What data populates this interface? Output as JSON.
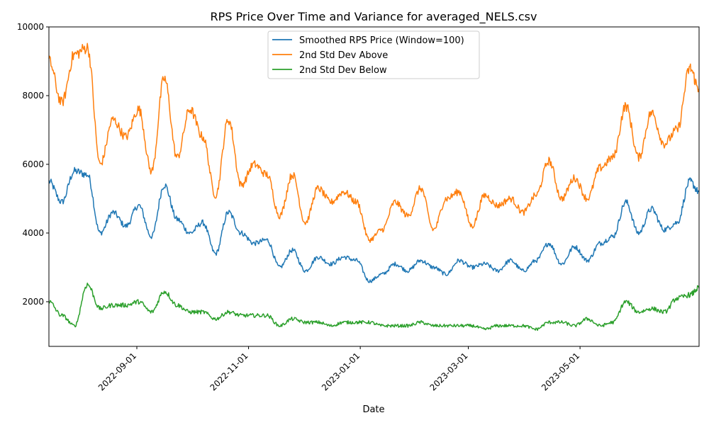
{
  "chart_data": {
    "type": "line",
    "title": "RPS Price Over Time and Variance for averaged_NELS.csv",
    "xlabel": "Date",
    "ylabel": "",
    "x_range": [
      "2022-07-15",
      "2023-07-05"
    ],
    "ylim": [
      700,
      10000
    ],
    "x_ticks": [
      "2022-09-01",
      "2022-11-01",
      "2023-01-01",
      "2023-03-01",
      "2023-05-01"
    ],
    "y_ticks": [
      2000,
      4000,
      6000,
      8000,
      10000
    ],
    "grid": false,
    "legend_position": "top-center",
    "x": [
      "2022-07-15",
      "2022-07-22",
      "2022-07-29",
      "2022-08-05",
      "2022-08-12",
      "2022-08-19",
      "2022-08-26",
      "2022-09-02",
      "2022-09-09",
      "2022-09-16",
      "2022-09-23",
      "2022-09-30",
      "2022-10-07",
      "2022-10-14",
      "2022-10-21",
      "2022-10-28",
      "2022-11-04",
      "2022-11-11",
      "2022-11-18",
      "2022-11-25",
      "2022-12-02",
      "2022-12-09",
      "2022-12-16",
      "2022-12-23",
      "2022-12-30",
      "2023-01-06",
      "2023-01-13",
      "2023-01-20",
      "2023-01-27",
      "2023-02-03",
      "2023-02-10",
      "2023-02-17",
      "2023-02-24",
      "2023-03-03",
      "2023-03-10",
      "2023-03-17",
      "2023-03-24",
      "2023-03-31",
      "2023-04-07",
      "2023-04-14",
      "2023-04-21",
      "2023-04-28",
      "2023-05-05",
      "2023-05-12",
      "2023-05-19",
      "2023-05-26",
      "2023-06-02",
      "2023-06-09",
      "2023-06-16",
      "2023-06-23",
      "2023-06-30",
      "2023-07-05"
    ],
    "series": [
      {
        "name": "Smoothed RPS Price (Window=100)",
        "color": "#1f77b4",
        "values": [
          5500,
          4900,
          5800,
          5700,
          4000,
          4600,
          4200,
          4800,
          3900,
          5400,
          4400,
          4000,
          4300,
          3400,
          4600,
          4000,
          3700,
          3800,
          3000,
          3500,
          2900,
          3300,
          3100,
          3300,
          3200,
          2600,
          2800,
          3100,
          2900,
          3200,
          3000,
          2800,
          3200,
          3000,
          3100,
          2900,
          3200,
          2900,
          3200,
          3700,
          3100,
          3600,
          3200,
          3700,
          3900,
          4900,
          4000,
          4700,
          4100,
          4300,
          5500,
          5200
        ]
      },
      {
        "name": "2nd Std Dev Above",
        "color": "#ff7f0e",
        "values": [
          9000,
          7800,
          9200,
          9400,
          6000,
          7300,
          6800,
          7600,
          5800,
          8500,
          6200,
          7600,
          6800,
          5100,
          7300,
          5400,
          6000,
          5700,
          4500,
          5700,
          4300,
          5300,
          4900,
          5200,
          4900,
          3800,
          4100,
          4900,
          4500,
          5300,
          4100,
          5000,
          5200,
          4200,
          5100,
          4800,
          5000,
          4600,
          5100,
          6100,
          5000,
          5600,
          5000,
          5900,
          6200,
          7700,
          6200,
          7500,
          6600,
          7000,
          8800,
          8200
        ]
      },
      {
        "name": "2nd Std Dev Below",
        "color": "#2ca02c",
        "values": [
          2000,
          1600,
          1300,
          2500,
          1800,
          1900,
          1900,
          2000,
          1700,
          2300,
          1900,
          1700,
          1700,
          1500,
          1700,
          1600,
          1600,
          1600,
          1300,
          1500,
          1400,
          1400,
          1300,
          1400,
          1400,
          1400,
          1300,
          1300,
          1300,
          1400,
          1300,
          1300,
          1300,
          1300,
          1200,
          1300,
          1300,
          1300,
          1200,
          1400,
          1400,
          1300,
          1500,
          1300,
          1400,
          2000,
          1700,
          1800,
          1700,
          2100,
          2200,
          2400
        ]
      }
    ]
  }
}
